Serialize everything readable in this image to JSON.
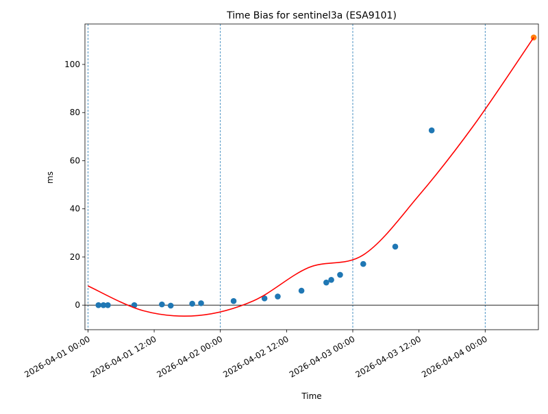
{
  "chart_data": {
    "type": "scatter",
    "title": "Time Bias for sentinel3a (ESA9101)",
    "xlabel": "Time",
    "ylabel": "ms",
    "x_unit": "hours after 2026-04-01 00:00",
    "xlim": [
      -0.55,
      81.65
    ],
    "ylim": [
      -10.2,
      116.8
    ],
    "x_ticks": [
      {
        "x": 0,
        "label": "2026-04-01 00:00"
      },
      {
        "x": 12,
        "label": "2026-04-01 12:00"
      },
      {
        "x": 24,
        "label": "2026-04-02 00:00"
      },
      {
        "x": 36,
        "label": "2026-04-02 12:00"
      },
      {
        "x": 48,
        "label": "2026-04-03 00:00"
      },
      {
        "x": 60,
        "label": "2026-04-03 12:00"
      },
      {
        "x": 72,
        "label": "2026-04-04 00:00"
      }
    ],
    "y_ticks": [
      0,
      20,
      40,
      60,
      80,
      100
    ],
    "vlines_at_days": [
      0,
      24,
      48,
      72
    ],
    "hline_y": 0,
    "grid": false,
    "series": [
      {
        "kind": "points",
        "color": "#1f77b4",
        "points": [
          {
            "x": 1.9,
            "y": 0.0
          },
          {
            "x": 2.8,
            "y": 0.0
          },
          {
            "x": 3.6,
            "y": 0.0
          },
          {
            "x": 8.4,
            "y": 0.0
          },
          {
            "x": 13.4,
            "y": 0.3
          },
          {
            "x": 15.0,
            "y": -0.2
          },
          {
            "x": 18.9,
            "y": 0.6
          },
          {
            "x": 20.5,
            "y": 0.8
          },
          {
            "x": 26.4,
            "y": 1.7
          },
          {
            "x": 32.0,
            "y": 2.8
          },
          {
            "x": 34.4,
            "y": 3.6
          },
          {
            "x": 38.7,
            "y": 6.0
          },
          {
            "x": 43.2,
            "y": 9.4
          },
          {
            "x": 44.1,
            "y": 10.5
          },
          {
            "x": 45.7,
            "y": 12.6
          },
          {
            "x": 49.9,
            "y": 17.1
          },
          {
            "x": 55.7,
            "y": 24.3
          },
          {
            "x": 62.3,
            "y": 72.6
          }
        ]
      },
      {
        "kind": "points",
        "color": "#ff7f0e",
        "points": [
          {
            "x": 80.8,
            "y": 111.2
          }
        ]
      },
      {
        "kind": "fit-line",
        "color": "#ff0000",
        "points": [
          {
            "x": 0,
            "y": 8.0
          },
          {
            "x": 10,
            "y": -2.3
          },
          {
            "x": 20,
            "y": -4.3
          },
          {
            "x": 30,
            "y": 1.8
          },
          {
            "x": 40,
            "y": 15.6
          },
          {
            "x": 50,
            "y": 21.0
          },
          {
            "x": 60,
            "y": 45.6
          },
          {
            "x": 70,
            "y": 74.9
          },
          {
            "x": 80.8,
            "y": 111.2
          }
        ]
      }
    ]
  }
}
